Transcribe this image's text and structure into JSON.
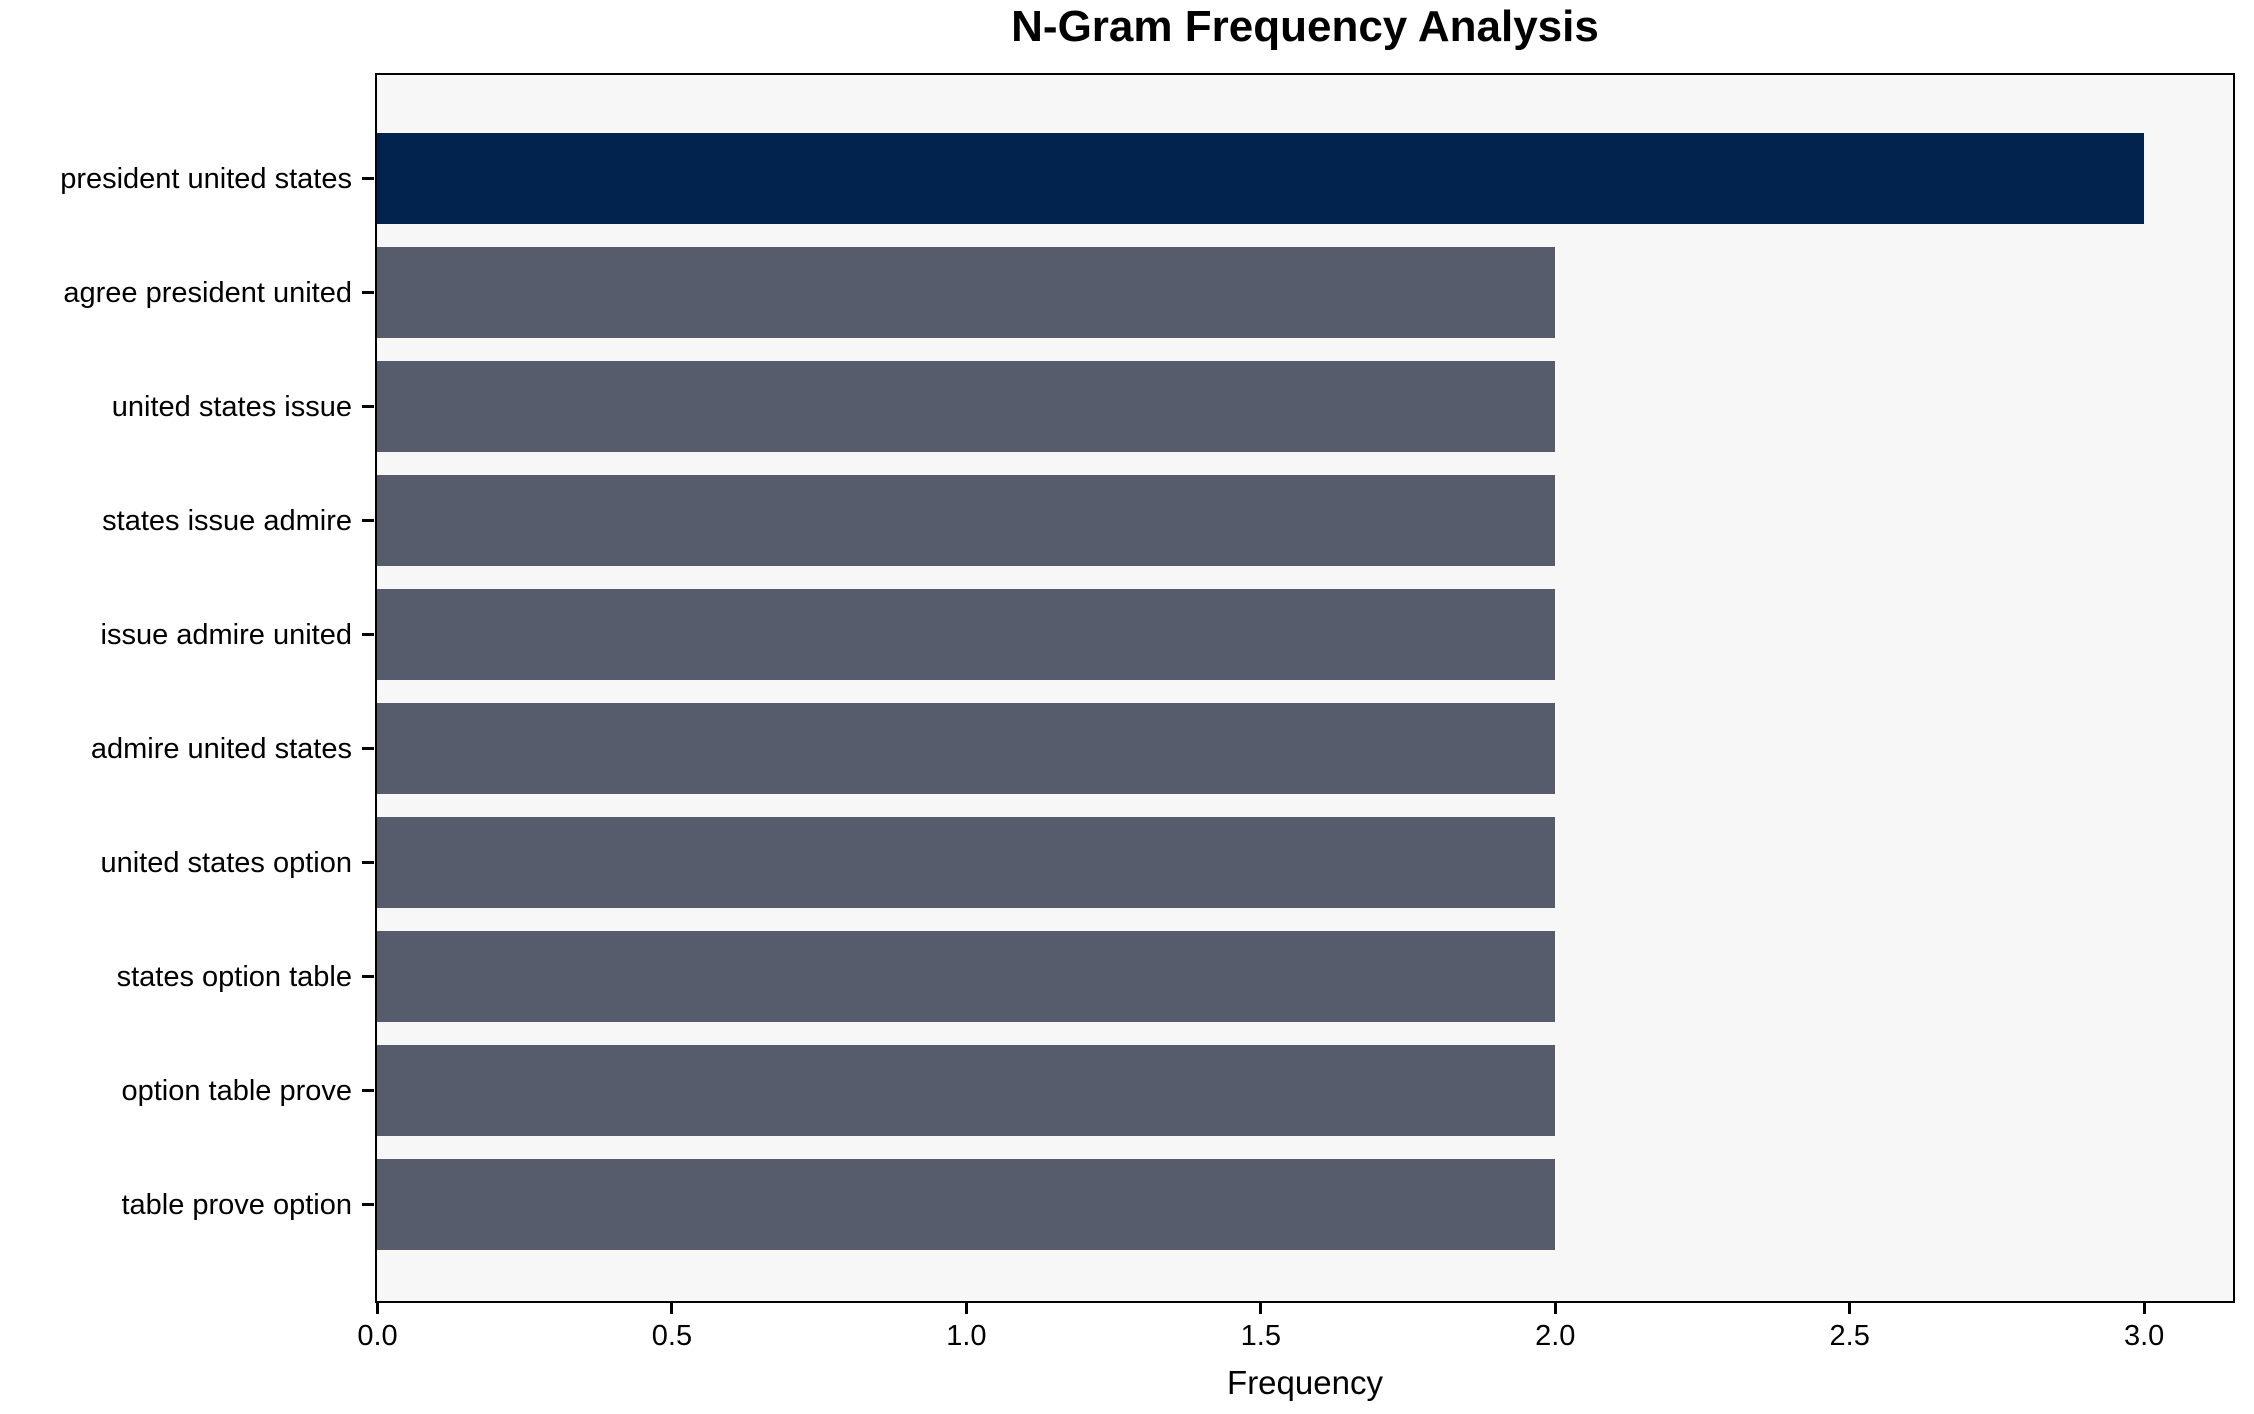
{
  "chart_data": {
    "type": "bar",
    "orientation": "horizontal",
    "title": "N-Gram Frequency Analysis",
    "xlabel": "Frequency",
    "ylabel": "",
    "categories": [
      "president united states",
      "agree president united",
      "united states issue",
      "states issue admire",
      "issue admire united",
      "admire united states",
      "united states option",
      "states option table",
      "option table prove",
      "table prove option"
    ],
    "values": [
      3,
      2,
      2,
      2,
      2,
      2,
      2,
      2,
      2,
      2
    ],
    "bar_colors": [
      "#01234e",
      "#565c6b",
      "#565c6b",
      "#565c6b",
      "#565c6b",
      "#565c6b",
      "#565c6b",
      "#565c6b",
      "#565c6b",
      "#565c6b"
    ],
    "xlim": [
      0,
      3.15
    ],
    "x_tick_labels": [
      "0.0",
      "0.5",
      "1.0",
      "1.5",
      "2.0",
      "2.5",
      "3.0"
    ],
    "grid": false,
    "legend": "none",
    "colors": {
      "bar_highlight": "#01234e",
      "bar_default": "#565c6b",
      "plot_background": "#f7f7f8",
      "figure_background": "#ffffff",
      "spine": "#000000",
      "text": "#000000"
    }
  }
}
